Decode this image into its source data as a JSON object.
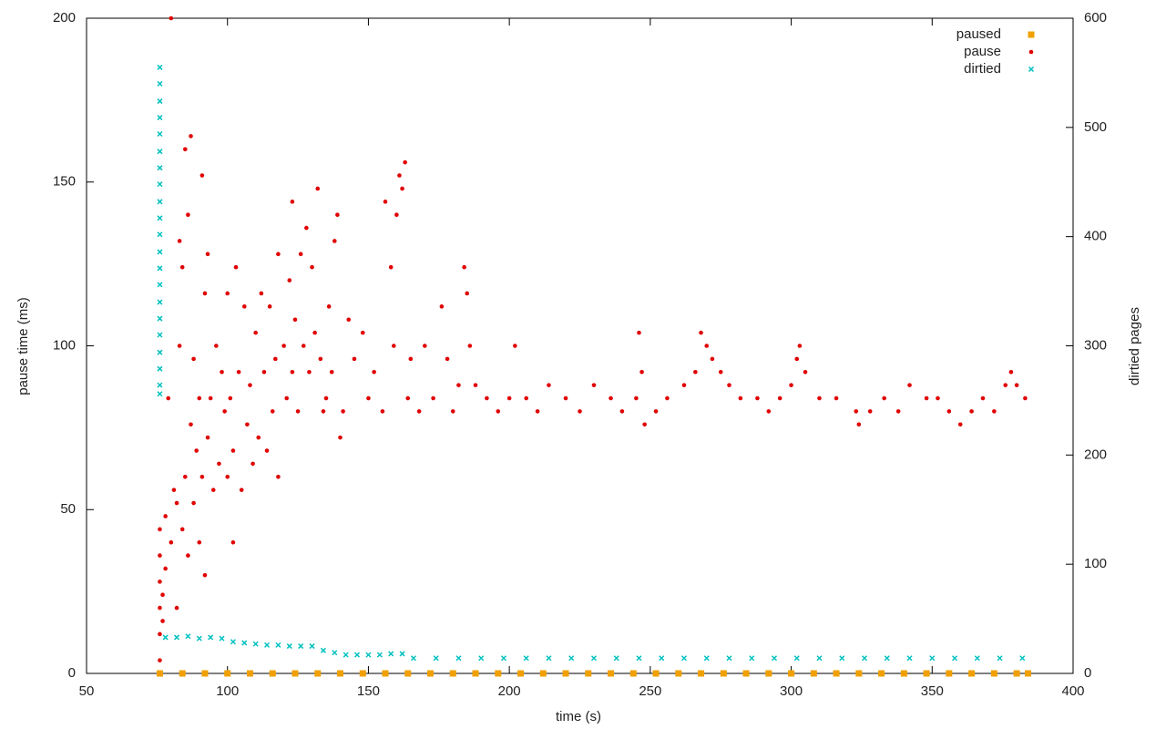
{
  "chart_data": {
    "type": "scatter",
    "xlabel": "time (s)",
    "ylabel": "pause time (ms)",
    "y2label": "dirtied pages",
    "xlim": [
      50,
      400
    ],
    "xticks": [
      50,
      100,
      150,
      200,
      250,
      300,
      350,
      400
    ],
    "ylim": [
      0,
      200
    ],
    "yticks": [
      0,
      50,
      100,
      150,
      200
    ],
    "y2lim": [
      0,
      600
    ],
    "y2ticks": [
      0,
      100,
      200,
      300,
      400,
      500,
      600
    ],
    "legend": "top-right",
    "series": [
      {
        "name": "paused",
        "color": "#f0a000",
        "marker": "square",
        "x": [
          76,
          84,
          92,
          100,
          108,
          116,
          124,
          132,
          140,
          148,
          156,
          164,
          172,
          180,
          188,
          196,
          204,
          212,
          220,
          228,
          236,
          244,
          252,
          260,
          268,
          276,
          284,
          292,
          300,
          308,
          316,
          324,
          332,
          340,
          348,
          356,
          364,
          372,
          380,
          384
        ],
        "values": [
          0,
          0,
          0,
          0,
          0,
          0,
          0,
          0,
          0,
          0,
          0,
          0,
          0,
          0,
          0,
          0,
          0,
          0,
          0,
          0,
          0,
          0,
          0,
          0,
          0,
          0,
          0,
          0,
          0,
          0,
          0,
          0,
          0,
          0,
          0,
          0,
          0,
          0,
          0,
          0
        ]
      },
      {
        "name": "pause",
        "color": "#e00000",
        "marker": "dot",
        "x": [
          76,
          76,
          76,
          76,
          76,
          76,
          77,
          77,
          78,
          78,
          79,
          80,
          80,
          81,
          82,
          82,
          83,
          83,
          84,
          84,
          85,
          85,
          86,
          86,
          87,
          87,
          88,
          88,
          89,
          90,
          90,
          91,
          91,
          92,
          92,
          93,
          93,
          94,
          95,
          96,
          97,
          98,
          99,
          100,
          100,
          101,
          102,
          102,
          103,
          104,
          105,
          106,
          107,
          108,
          109,
          110,
          111,
          112,
          113,
          114,
          115,
          116,
          117,
          118,
          118,
          120,
          121,
          122,
          123,
          123,
          124,
          125,
          126,
          127,
          128,
          129,
          130,
          131,
          132,
          133,
          134,
          135,
          136,
          137,
          138,
          139,
          140,
          141,
          143,
          145,
          148,
          150,
          152,
          155,
          156,
          158,
          159,
          160,
          161,
          162,
          163,
          164,
          165,
          168,
          170,
          173,
          176,
          178,
          180,
          182,
          184,
          185,
          186,
          188,
          192,
          196,
          200,
          202,
          206,
          210,
          214,
          220,
          225,
          230,
          236,
          240,
          245,
          246,
          247,
          248,
          252,
          256,
          262,
          266,
          268,
          270,
          272,
          275,
          278,
          282,
          288,
          292,
          296,
          300,
          302,
          303,
          305,
          310,
          316,
          323,
          324,
          328,
          333,
          338,
          342,
          348,
          352,
          356,
          360,
          364,
          368,
          372,
          376,
          378,
          380,
          383
        ],
        "values": [
          4,
          12,
          20,
          28,
          36,
          44,
          16,
          24,
          32,
          48,
          84,
          200,
          40,
          56,
          20,
          52,
          100,
          132,
          124,
          44,
          160,
          60,
          140,
          36,
          164,
          76,
          96,
          52,
          68,
          84,
          40,
          152,
          60,
          116,
          30,
          128,
          72,
          84,
          56,
          100,
          64,
          92,
          80,
          116,
          60,
          84,
          40,
          68,
          124,
          92,
          56,
          112,
          76,
          88,
          64,
          104,
          72,
          116,
          92,
          68,
          112,
          80,
          96,
          128,
          60,
          100,
          84,
          120,
          144,
          92,
          108,
          80,
          128,
          100,
          136,
          92,
          124,
          104,
          148,
          96,
          80,
          84,
          112,
          92,
          132,
          140,
          72,
          80,
          108,
          96,
          104,
          84,
          92,
          80,
          144,
          124,
          100,
          140,
          152,
          148,
          156,
          84,
          96,
          80,
          100,
          84,
          112,
          96,
          80,
          88,
          124,
          116,
          100,
          88,
          84,
          80,
          84,
          100,
          84,
          80,
          88,
          84,
          80,
          88,
          84,
          80,
          84,
          104,
          92,
          76,
          80,
          84,
          88,
          92,
          104,
          100,
          96,
          92,
          88,
          84,
          84,
          80,
          84,
          88,
          96,
          100,
          92,
          84,
          84,
          80,
          76,
          80,
          84,
          80,
          88,
          84,
          84,
          80,
          76,
          80,
          84,
          80,
          88,
          92,
          88,
          84
        ]
      },
      {
        "name": "dirtied",
        "color": "#00c0c0",
        "marker": "cross",
        "axis": "y2",
        "x": [
          76,
          76,
          76,
          76,
          76,
          76,
          76,
          76,
          76,
          76,
          76,
          76,
          76,
          76,
          76,
          76,
          76,
          76,
          76,
          76,
          76,
          78,
          82,
          86,
          90,
          94,
          98,
          102,
          106,
          110,
          114,
          118,
          122,
          126,
          130,
          134,
          138,
          142,
          146,
          150,
          154,
          158,
          162,
          166,
          174,
          182,
          190,
          198,
          206,
          214,
          222,
          230,
          238,
          246,
          254,
          262,
          270,
          278,
          286,
          294,
          302,
          310,
          318,
          326,
          334,
          342,
          350,
          358,
          366,
          374,
          382
        ],
        "values": [
          555,
          540,
          524,
          509,
          494,
          478,
          463,
          448,
          432,
          417,
          402,
          386,
          371,
          356,
          340,
          325,
          310,
          294,
          279,
          264,
          256,
          33,
          33,
          34,
          32,
          33,
          32,
          29,
          28,
          27,
          26,
          26,
          25,
          25,
          25,
          21,
          19,
          17,
          17,
          17,
          17,
          18,
          18,
          14,
          14,
          14,
          14,
          14,
          14,
          14,
          14,
          14,
          14,
          14,
          14,
          14,
          14,
          14,
          14,
          14,
          14,
          14,
          14,
          14,
          14,
          14,
          14,
          14,
          14,
          14,
          14
        ]
      }
    ]
  }
}
